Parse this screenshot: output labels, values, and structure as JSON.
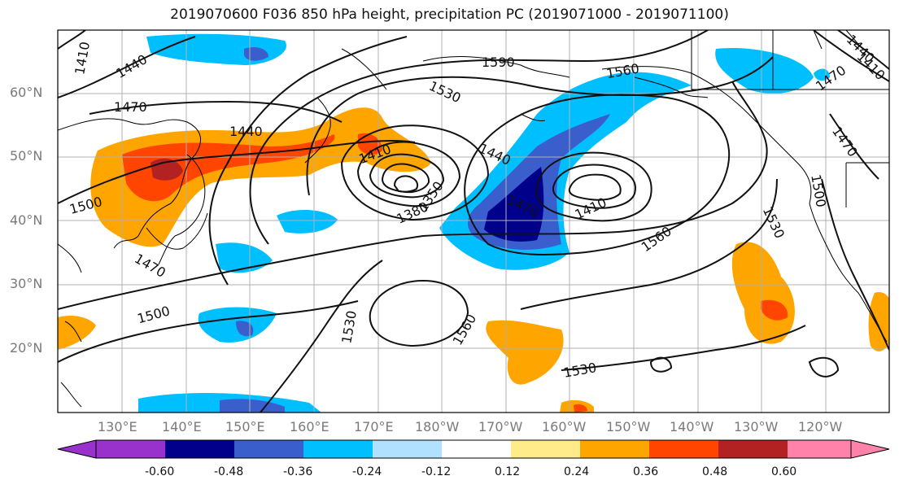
{
  "title": "2019070600 F036 850 hPa height, precipitation PC (2019071000 - 2019071100)",
  "lat_labels": [
    "60°N",
    "50°N",
    "40°N",
    "30°N",
    "20°N"
  ],
  "lon_labels": [
    "130°E",
    "140°E",
    "150°E",
    "160°E",
    "170°E",
    "180°W",
    "170°W",
    "160°W",
    "150°W",
    "140°W",
    "130°W",
    "120°W"
  ],
  "colorbar": {
    "ticks": [
      "-0.60",
      "-0.48",
      "-0.36",
      "-0.24",
      "-0.12",
      "0.12",
      "0.24",
      "0.36",
      "0.48",
      "0.60"
    ],
    "colors": [
      "#9932cc",
      "#00008b",
      "#3a5fcd",
      "#00bfff",
      "#b0e2ff",
      "#ffffff",
      "#ffeb8a",
      "#ffa500",
      "#ff4500",
      "#b22222",
      "#ff82ab"
    ]
  },
  "contour_labels": [
    "1410",
    "1440",
    "1470",
    "1500",
    "1530",
    "1560",
    "1590",
    "1380",
    "1350"
  ],
  "map_labels": {
    "l1410_a": "1410",
    "l1440_a": "1440",
    "l1590": "1590",
    "l1560_a": "1560",
    "l1440_ne": "1440",
    "l1410_ne": "1410",
    "l1470_ne": "1470",
    "l1470_w": "1470",
    "l1440_w": "1440",
    "l1530_a": "1530",
    "l1410_c": "1410",
    "l1440_c": "1440",
    "l1500_w": "1500",
    "l1380": "1380",
    "l1350": "1350",
    "l1470_c": "1470",
    "l1410_e": "1410",
    "l1470_e": "1470",
    "l1500_e": "1500",
    "l1530_e": "1530",
    "l1560_e": "1560",
    "l1470_sw": "1470",
    "l1500_s": "1500",
    "l1530_s": "1530",
    "l1560_s": "1560",
    "l1530_se": "1530"
  }
}
